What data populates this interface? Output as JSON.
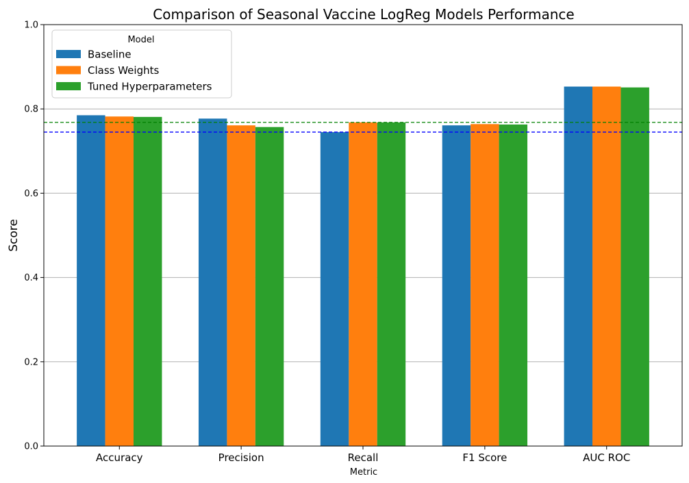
{
  "chart_data": {
    "type": "bar",
    "title": "Comparison of Seasonal Vaccine LogReg Models Performance",
    "xlabel": "Metric",
    "ylabel": "Score",
    "ylim": [
      0,
      1
    ],
    "yticks": [
      "0.0",
      "0.2",
      "0.4",
      "0.6",
      "0.8",
      "1.0"
    ],
    "grid": "y",
    "categories": [
      "Accuracy",
      "Precision",
      "Recall",
      "F1 Score",
      "AUC ROC"
    ],
    "legend": {
      "title": "Model",
      "placement": "top-left"
    },
    "series": [
      {
        "name": "Baseline",
        "color": "#1f77b4",
        "values": [
          0.785,
          0.777,
          0.745,
          0.761,
          0.853
        ]
      },
      {
        "name": "Class Weights",
        "color": "#ff7f0e",
        "values": [
          0.782,
          0.761,
          0.768,
          0.764,
          0.853
        ]
      },
      {
        "name": "Tuned Hyperparameters",
        "color": "#2ca02c",
        "values": [
          0.781,
          0.757,
          0.768,
          0.763,
          0.851
        ]
      }
    ],
    "reference_lines": [
      {
        "value": 0.745,
        "color": "#0000ff",
        "style": "dashed"
      },
      {
        "value": 0.768,
        "color": "#008000",
        "style": "dashed"
      }
    ]
  }
}
